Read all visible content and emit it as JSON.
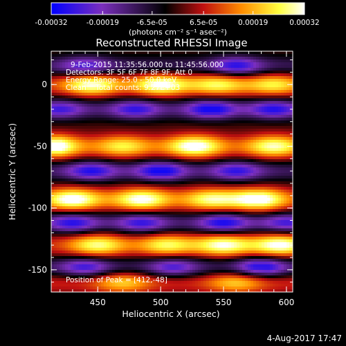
{
  "chart_data": {
    "type": "heatmap",
    "title": "Reconstructed RHESSI Image",
    "xlabel": "Heliocentric X (arcsec)",
    "ylabel": "Heliocentric Y (arcsec)",
    "xlim": [
      413,
      605
    ],
    "ylim": [
      -168,
      27
    ],
    "x_ticks": [
      450,
      500,
      550,
      600
    ],
    "y_ticks": [
      0,
      -50,
      -100,
      -150
    ],
    "colorbar": {
      "range": [
        -0.00032,
        0.00032
      ],
      "tick_values": [
        -0.00032,
        -0.00019,
        -6.5e-05,
        6.5e-05,
        0.00019,
        0.00032
      ],
      "tick_labels": [
        "-0.00032",
        "-0.00019",
        "-6.5e-05",
        "6.5e-05",
        "0.00019",
        "0.00032"
      ],
      "unit_label": "(photons cm⁻² s⁻¹ asec⁻²)",
      "colors": [
        "#0000ff",
        "#7b2fbe",
        "#000000",
        "#c01010",
        "#ff8c00",
        "#ffff40",
        "#ffffff"
      ]
    },
    "annotations": {
      "time_range": "9-Feb-2015 11:35:56.000 to 11:45:56.000",
      "detectors": "Detectors: 3F 5F 6F 7F 8F 9F, Att 0",
      "energy": "Energy Range: 25.0 - 50.0 keV",
      "method": "Clean    Total counts: 9.27E+03",
      "peak": "Position of Peak = [412,-48]"
    },
    "peak": [
      412,
      -48
    ],
    "positive_bands": [
      {
        "y": 0,
        "hot": [
          [
            445,
            0.75
          ],
          [
            500,
            0.8
          ],
          [
            545,
            0.6
          ],
          [
            590,
            0.55
          ]
        ]
      },
      {
        "y": -50,
        "hot": [
          [
            412,
            1.0
          ],
          [
            470,
            0.55
          ],
          [
            527,
            0.85
          ],
          [
            590,
            0.7
          ]
        ]
      },
      {
        "y": -93,
        "hot": [
          [
            430,
            0.85
          ],
          [
            485,
            0.8
          ],
          [
            540,
            0.65
          ],
          [
            578,
            0.85
          ]
        ]
      },
      {
        "y": -130,
        "hot": [
          [
            450,
            0.65
          ],
          [
            505,
            0.6
          ],
          [
            550,
            0.75
          ],
          [
            595,
            0.8
          ]
        ]
      },
      {
        "y": -160,
        "hot": [
          [
            470,
            0.45
          ],
          [
            560,
            0.45
          ]
        ]
      }
    ],
    "negative_bands": [
      {
        "y": 15,
        "cool": [
          [
            440,
            0.5
          ],
          [
            560,
            0.6
          ]
        ]
      },
      {
        "y": -20,
        "cool": [
          [
            420,
            0.5
          ],
          [
            480,
            0.55
          ],
          [
            540,
            0.7
          ],
          [
            590,
            0.6
          ]
        ]
      },
      {
        "y": -70,
        "cool": [
          [
            445,
            0.6
          ],
          [
            500,
            0.7
          ],
          [
            560,
            0.55
          ]
        ]
      },
      {
        "y": -112,
        "cool": [
          [
            430,
            0.6
          ],
          [
            485,
            0.55
          ],
          [
            550,
            0.65
          ],
          [
            600,
            0.5
          ]
        ]
      },
      {
        "y": -148,
        "cool": [
          [
            440,
            0.55
          ],
          [
            510,
            0.5
          ],
          [
            580,
            0.7
          ]
        ]
      }
    ]
  },
  "footer": {
    "date": "4-Aug-2017 17:47"
  }
}
